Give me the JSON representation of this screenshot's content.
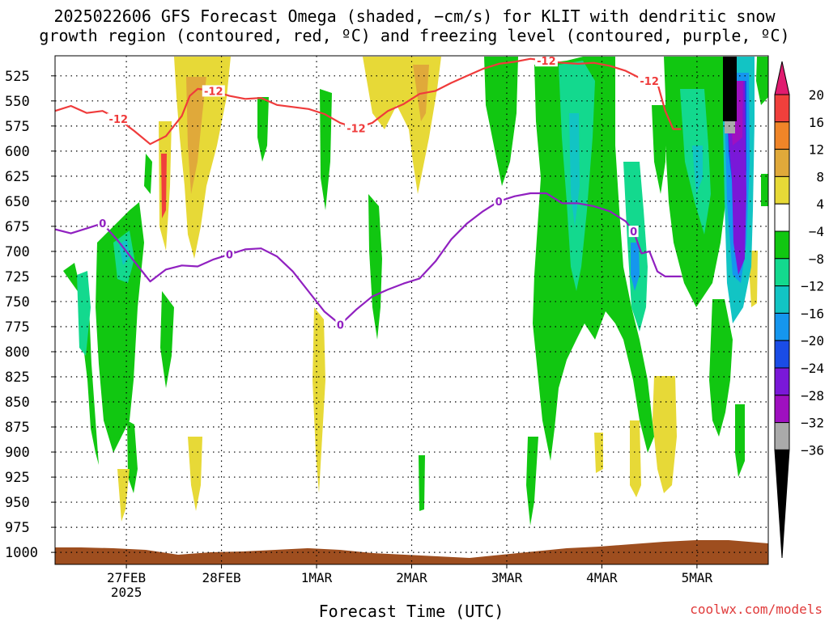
{
  "title_line1": "2025022606 GFS Forecast Omega (shaded, −cm/s) for KLIT with dendritic snow",
  "title_line2": "growth region (contoured, red, ºC) and freezing level (contoured, purple, ºC)",
  "xaxis_title": "Forecast Time (UTC)",
  "credit": "coolwx.com/models",
  "chart_data": {
    "type": "heatmap",
    "x_range": [
      "2025-02-26T06",
      "2025-03-05T18"
    ],
    "x_ticks": [
      {
        "label": "27FEB",
        "sub": "2025",
        "time": "2025-02-27T00"
      },
      {
        "label": "28FEB",
        "sub": "",
        "time": "2025-02-28T00"
      },
      {
        "label": "1MAR",
        "sub": "",
        "time": "2025-03-01T00"
      },
      {
        "label": "2MAR",
        "sub": "",
        "time": "2025-03-02T00"
      },
      {
        "label": "3MAR",
        "sub": "",
        "time": "2025-03-03T00"
      },
      {
        "label": "4MAR",
        "sub": "",
        "time": "2025-03-04T00"
      },
      {
        "label": "5MAR",
        "sub": "",
        "time": "2025-03-05T00"
      }
    ],
    "y_levels_mb": [
      525,
      550,
      575,
      600,
      625,
      650,
      675,
      700,
      725,
      750,
      775,
      800,
      825,
      850,
      875,
      900,
      925,
      950,
      975,
      1000
    ],
    "y_range_mb": [
      505,
      1012
    ],
    "grid": true,
    "colorbar": {
      "labels": [
        "20",
        "16",
        "12",
        "8",
        "4",
        "−4",
        "−8",
        "−12",
        "−16",
        "−20",
        "−24",
        "−28",
        "−32",
        "−36"
      ],
      "colors": [
        "#e01b6f",
        "#f0403c",
        "#f08528",
        "#e0a93a",
        "#e7d937",
        "#ffffff",
        "#11c711",
        "#13d98e",
        "#12c4c4",
        "#1596ee",
        "#1a4ce6",
        "#7a18d8",
        "#9f10c0",
        "#aaaaaa",
        "#000000"
      ]
    },
    "contours": [
      {
        "label": "-12",
        "color": "#ef3b3b",
        "points": [
          [
            0,
            560
          ],
          [
            4,
            555
          ],
          [
            8,
            562
          ],
          [
            12,
            560
          ],
          [
            16,
            568
          ],
          [
            20,
            580
          ],
          [
            24,
            593
          ],
          [
            28,
            585
          ],
          [
            32,
            565
          ],
          [
            34,
            545
          ],
          [
            36,
            538
          ],
          [
            40,
            540
          ],
          [
            44,
            545
          ],
          [
            48,
            548
          ],
          [
            52,
            547
          ],
          [
            56,
            554
          ],
          [
            60,
            556
          ],
          [
            64,
            558
          ],
          [
            68,
            563
          ],
          [
            72,
            572
          ],
          [
            76,
            577
          ],
          [
            80,
            572
          ],
          [
            84,
            560
          ],
          [
            88,
            553
          ],
          [
            92,
            543
          ],
          [
            96,
            540
          ],
          [
            100,
            532
          ],
          [
            104,
            525
          ],
          [
            108,
            518
          ],
          [
            112,
            513
          ],
          [
            116,
            511
          ],
          [
            120,
            508
          ],
          [
            124,
            510
          ],
          [
            128,
            512
          ],
          [
            132,
            513
          ],
          [
            136,
            512
          ],
          [
            140,
            515
          ],
          [
            144,
            520
          ],
          [
            148,
            528
          ],
          [
            150,
            530
          ],
          [
            152,
            532
          ],
          [
            154,
            560
          ],
          [
            156,
            578
          ],
          [
            158,
            578
          ]
        ],
        "labels_at": [
          16,
          40,
          78,
          126,
          150
        ]
      },
      {
        "label": "0",
        "color": "#9020c0",
        "points": [
          [
            0,
            678
          ],
          [
            4,
            682
          ],
          [
            8,
            677
          ],
          [
            12,
            672
          ],
          [
            16,
            690
          ],
          [
            20,
            710
          ],
          [
            24,
            730
          ],
          [
            28,
            718
          ],
          [
            32,
            714
          ],
          [
            36,
            715
          ],
          [
            40,
            708
          ],
          [
            44,
            703
          ],
          [
            48,
            698
          ],
          [
            52,
            697
          ],
          [
            56,
            705
          ],
          [
            60,
            720
          ],
          [
            64,
            740
          ],
          [
            68,
            760
          ],
          [
            72,
            773
          ],
          [
            76,
            758
          ],
          [
            80,
            745
          ],
          [
            84,
            738
          ],
          [
            88,
            732
          ],
          [
            92,
            727
          ],
          [
            96,
            710
          ],
          [
            100,
            688
          ],
          [
            104,
            672
          ],
          [
            108,
            660
          ],
          [
            112,
            650
          ],
          [
            116,
            645
          ],
          [
            120,
            642
          ],
          [
            124,
            642
          ],
          [
            128,
            652
          ],
          [
            132,
            652
          ],
          [
            136,
            655
          ],
          [
            140,
            660
          ],
          [
            144,
            670
          ],
          [
            146,
            680
          ],
          [
            148,
            702
          ],
          [
            150,
            700
          ],
          [
            152,
            720
          ],
          [
            154,
            725
          ],
          [
            156,
            725
          ],
          [
            158,
            725
          ]
        ],
        "labels_at": [
          13,
          46,
          74,
          111,
          146
        ]
      }
    ],
    "surface": "brown terrain shading near 1000 mb"
  }
}
